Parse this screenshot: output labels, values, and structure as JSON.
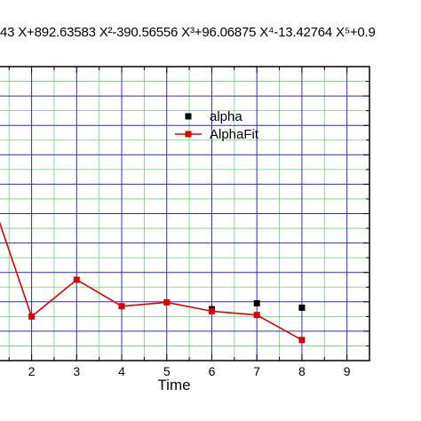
{
  "chart_data": {
    "type": "line",
    "title": "43 X+892.63583 X²-390.56556 X³+96.06875 X⁴-13.42764 X⁵+0.9",
    "xlabel": "Time",
    "ylabel": "",
    "xlim": [
      1.2,
      9.5
    ],
    "ylim": [
      0,
      10
    ],
    "x_ticks": [
      "2",
      "3",
      "4",
      "5",
      "6",
      "7",
      "8",
      "9"
    ],
    "grid": true,
    "legend_position": "top-right",
    "series": [
      {
        "name": "alpha",
        "style": "markers",
        "color": "#000000",
        "x": [
          6,
          7,
          8
        ],
        "y": [
          1.75,
          1.95,
          1.8
        ]
      },
      {
        "name": "AlphaFit",
        "style": "line-markers",
        "color": "#dd0000",
        "x": [
          1,
          2,
          3,
          4,
          5,
          6,
          7,
          8
        ],
        "y": [
          6.0,
          1.5,
          2.75,
          1.85,
          1.98,
          1.68,
          1.55,
          0.7
        ]
      }
    ]
  }
}
